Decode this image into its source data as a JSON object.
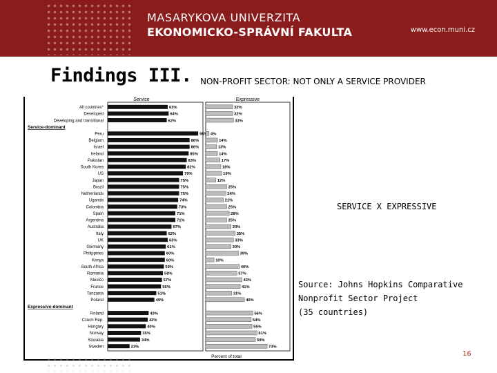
{
  "header": {
    "university_line1": "MASARYKOVA UNIVERZITA",
    "university_line2": "EKONOMICKO-SPRÁVNÍ FAKULTA",
    "website": "www.econ.muni.cz",
    "banner_color": "#8b1c1c"
  },
  "slide": {
    "title": "Findings III.",
    "subtitle": "NON-PROFIT SECTOR: NOT ONLY A SERVICE PROVIDER",
    "caption": "SERVICE X EXPRESSIVE",
    "source_lines": [
      "Source: Johns Hopkins Comparative",
      "Nonprofit Sector Project",
      "(35 countries)"
    ],
    "page_number": "16"
  },
  "chart_data": {
    "type": "bar",
    "panels": [
      "Service",
      "Expressive"
    ],
    "xlabel": "Percent of total",
    "colors": {
      "service": "#111111",
      "expressive": "#bdbdbd"
    },
    "rows": [
      {
        "label": "All countries*",
        "service": 63,
        "expressive": 32
      },
      {
        "label": "Developed",
        "service": 64,
        "expressive": 32
      },
      {
        "label": "Developing and transitional",
        "service": 62,
        "expressive": 33
      },
      {
        "section": "Service-dominant"
      },
      {
        "label": "Peru",
        "service": 95,
        "expressive": 4
      },
      {
        "label": "Belgium",
        "service": 86,
        "expressive": 14
      },
      {
        "label": "Israel",
        "service": 86,
        "expressive": 13
      },
      {
        "label": "Ireland",
        "service": 85,
        "expressive": 14
      },
      {
        "label": "Pakistan",
        "service": 83,
        "expressive": 17
      },
      {
        "label": "South Korea",
        "service": 82,
        "expressive": 18
      },
      {
        "label": "US",
        "service": 79,
        "expressive": 19
      },
      {
        "label": "Japan",
        "service": 75,
        "expressive": 12
      },
      {
        "label": "Brazil",
        "service": 75,
        "expressive": 25
      },
      {
        "label": "Netherlands",
        "service": 75,
        "expressive": 24
      },
      {
        "label": "Uganda",
        "service": 74,
        "expressive": 21
      },
      {
        "label": "Colombia",
        "service": 73,
        "expressive": 25
      },
      {
        "label": "Spain",
        "service": 71,
        "expressive": 28
      },
      {
        "label": "Argentina",
        "service": 71,
        "expressive": 25
      },
      {
        "label": "Australia",
        "service": 67,
        "expressive": 30
      },
      {
        "label": "Italy",
        "service": 62,
        "expressive": 35
      },
      {
        "label": "UK",
        "service": 63,
        "expressive": 33
      },
      {
        "label": "Germany",
        "service": 61,
        "expressive": 30
      },
      {
        "label": "Philippines",
        "service": 60,
        "expressive": 39
      },
      {
        "label": "Kenya",
        "service": 60,
        "expressive": 10
      },
      {
        "label": "South Africa",
        "service": 59,
        "expressive": 40
      },
      {
        "label": "Romania",
        "service": 58,
        "expressive": 37
      },
      {
        "label": "Mexico",
        "service": 57,
        "expressive": 43
      },
      {
        "label": "France",
        "service": 56,
        "expressive": 41
      },
      {
        "label": "Tanzania",
        "service": 51,
        "expressive": 31
      },
      {
        "label": "Poland",
        "service": 49,
        "expressive": 46
      },
      {
        "section": "Expressive-dominant"
      },
      {
        "label": "Finland",
        "service": 43,
        "expressive": 56
      },
      {
        "label": "Czech Rep.",
        "service": 42,
        "expressive": 54
      },
      {
        "label": "Hungary",
        "service": 40,
        "expressive": 55
      },
      {
        "label": "Norway",
        "service": 35,
        "expressive": 61
      },
      {
        "label": "Slovakia",
        "service": 34,
        "expressive": 59
      },
      {
        "label": "Sweden",
        "service": 23,
        "expressive": 73
      }
    ]
  }
}
